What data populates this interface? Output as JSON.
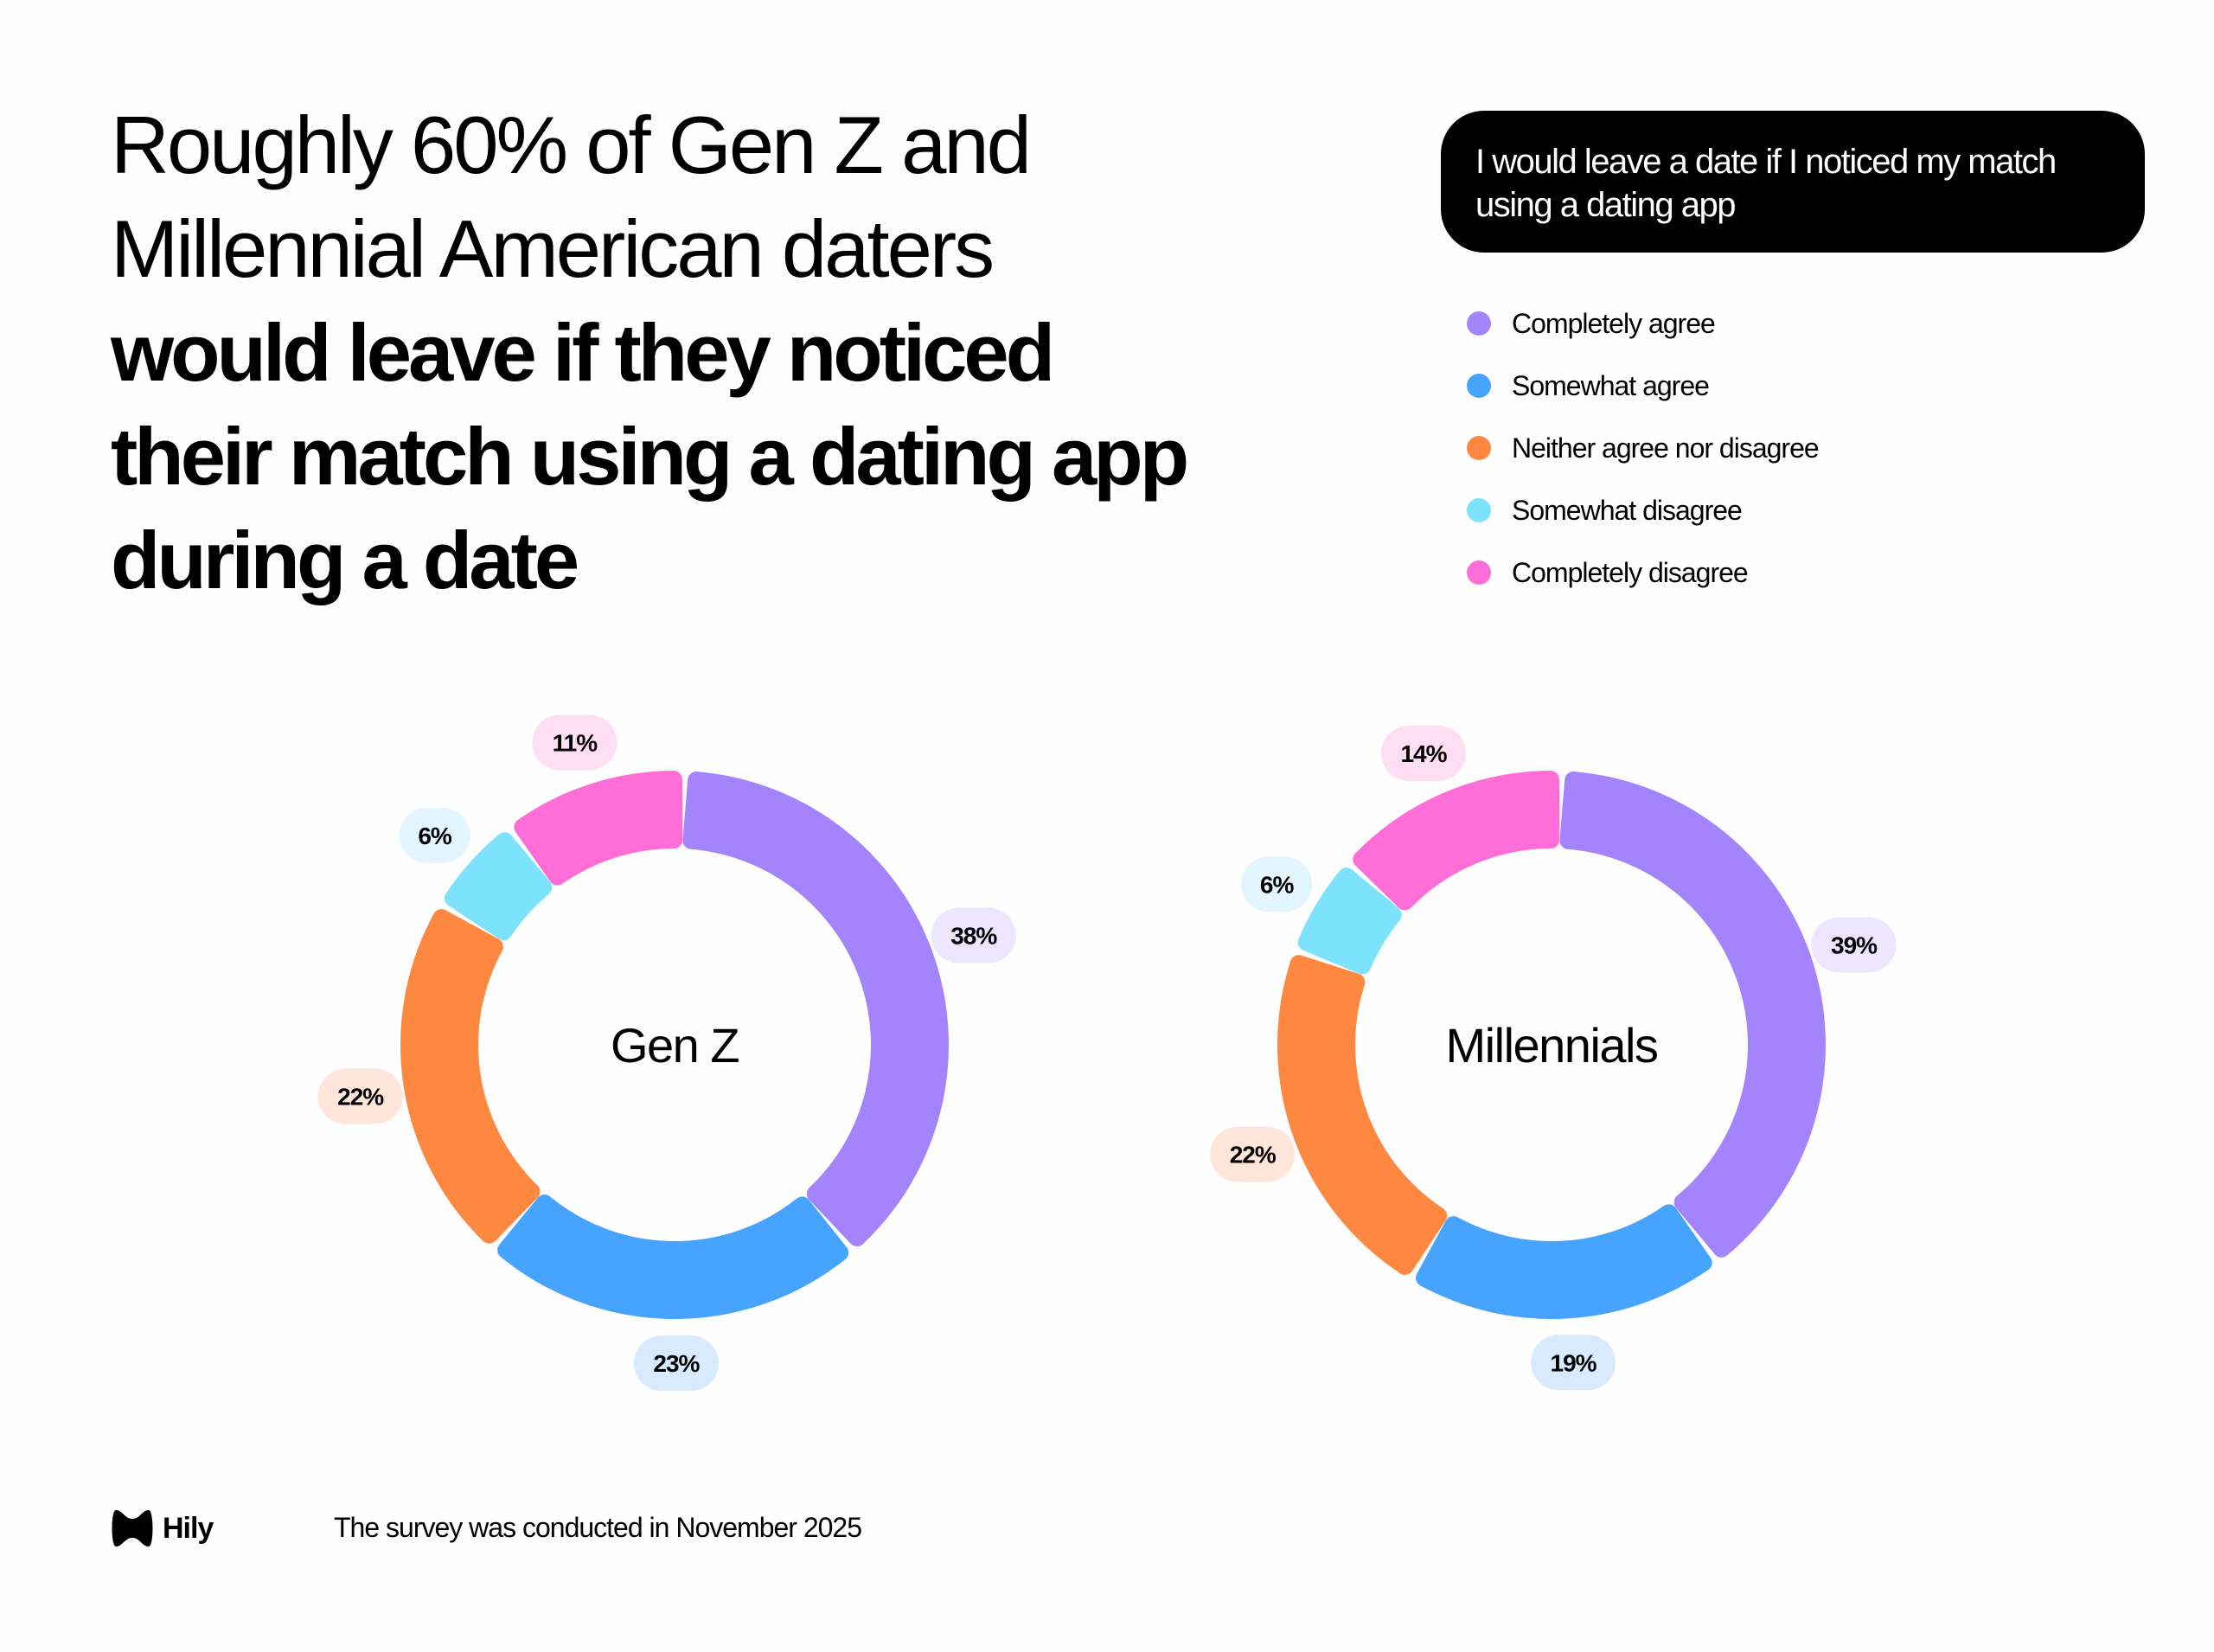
{
  "headline": {
    "light_lines": [
      "Roughly 60% of Gen Z and",
      "Millennial American daters"
    ],
    "bold_lines": [
      "would leave if they noticed",
      "their match using a dating app",
      "during a date"
    ]
  },
  "question": "I would leave a date if I noticed my match using a dating app",
  "legend": [
    {
      "label": "Completely agree",
      "color": "#A384FC"
    },
    {
      "label": "Somewhat agree",
      "color": "#47A4FE"
    },
    {
      "label": "Neither agree nor disagree",
      "color": "#FF8841"
    },
    {
      "label": "Somewhat disagree",
      "color": "#7DE3FC"
    },
    {
      "label": "Completely disagree",
      "color": "#FF6ED6"
    }
  ],
  "chart_data": [
    {
      "type": "pie",
      "donut": true,
      "title": "Gen Z",
      "categories": [
        "Completely agree",
        "Somewhat agree",
        "Neither agree nor disagree",
        "Somewhat disagree",
        "Completely disagree"
      ],
      "values": [
        38,
        23,
        22,
        6,
        11
      ],
      "labels": [
        "38%",
        "23%",
        "22%",
        "6%",
        "11%"
      ]
    },
    {
      "type": "pie",
      "donut": true,
      "title": "Millennials",
      "categories": [
        "Completely agree",
        "Somewhat agree",
        "Neither agree nor disagree",
        "Somewhat disagree",
        "Completely disagree"
      ],
      "values": [
        39,
        19,
        22,
        6,
        14
      ],
      "labels": [
        "39%",
        "19%",
        "22%",
        "6%",
        "14%"
      ]
    }
  ],
  "colors": {
    "segments": [
      "#A384FC",
      "#47A4FE",
      "#FF8841",
      "#7DE3FC",
      "#FF6ED6"
    ],
    "badges": [
      "#EDE6FF",
      "#D8EAFF",
      "#FFE5DA",
      "#E3F6FF",
      "#FFDDF3"
    ]
  },
  "footer": {
    "logo": "Hily",
    "note": "The survey was conducted in November 2025"
  }
}
